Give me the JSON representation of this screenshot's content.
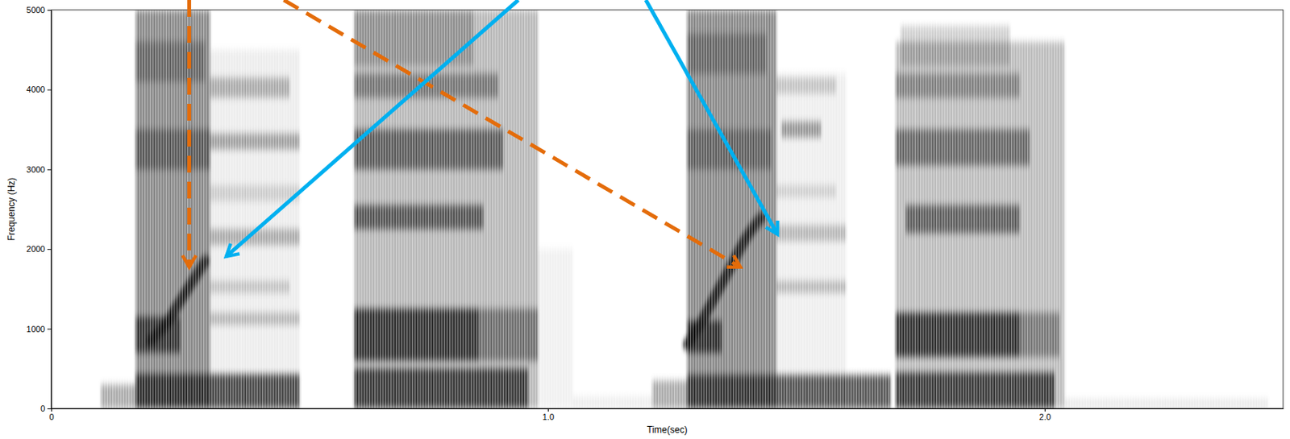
{
  "chart_data": {
    "type": "spectrogram",
    "xlabel": "Time(sec)",
    "ylabel": "Frequency (Hz)",
    "xlim": [
      0,
      2.48
    ],
    "ylim": [
      0,
      5000
    ],
    "xticks": [
      0,
      {
        "value": 1,
        "label": "1.0"
      },
      {
        "value": 2,
        "label": "2.0"
      }
    ],
    "yticks": [
      0,
      1000,
      2000,
      3000,
      4000,
      5000
    ],
    "grid": false,
    "zlim": [
      0,
      1
    ],
    "regions": [
      {
        "t": [
          0.1,
          0.17
        ],
        "f": [
          0,
          300
        ],
        "level": 0.35
      },
      {
        "t": [
          0.17,
          0.5
        ],
        "f": [
          0,
          430
        ],
        "level": 0.75
      },
      {
        "t": [
          0.17,
          0.32
        ],
        "f": [
          0,
          5000
        ],
        "level": 0.5
      },
      {
        "t": [
          0.17,
          0.32
        ],
        "f": [
          3000,
          3500
        ],
        "level": 0.4
      },
      {
        "t": [
          0.17,
          0.31
        ],
        "f": [
          4100,
          4600
        ],
        "level": 0.3
      },
      {
        "t": [
          0.17,
          0.26
        ],
        "f": [
          700,
          1150
        ],
        "level": 0.7
      },
      {
        "t": [
          0.32,
          0.5
        ],
        "f": [
          0,
          4500
        ],
        "level": 0.08
      },
      {
        "t": [
          0.32,
          0.5
        ],
        "f": [
          1050,
          1200
        ],
        "level": 0.25
      },
      {
        "t": [
          0.32,
          0.48
        ],
        "f": [
          1450,
          1600
        ],
        "level": 0.2
      },
      {
        "t": [
          0.32,
          0.5
        ],
        "f": [
          2050,
          2250
        ],
        "level": 0.3
      },
      {
        "t": [
          0.32,
          0.5
        ],
        "f": [
          2600,
          2800
        ],
        "level": 0.15
      },
      {
        "t": [
          0.32,
          0.5
        ],
        "f": [
          3250,
          3450
        ],
        "level": 0.35
      },
      {
        "t": [
          0.32,
          0.48
        ],
        "f": [
          3900,
          4150
        ],
        "level": 0.3
      },
      {
        "t": [
          0.61,
          0.96
        ],
        "f": [
          0,
          500
        ],
        "level": 0.75
      },
      {
        "t": [
          0.61,
          0.86
        ],
        "f": [
          600,
          1250
        ],
        "level": 0.8
      },
      {
        "t": [
          0.86,
          0.98
        ],
        "f": [
          600,
          1250
        ],
        "level": 0.45
      },
      {
        "t": [
          0.61,
          0.98
        ],
        "f": [
          0,
          5000
        ],
        "level": 0.3
      },
      {
        "t": [
          0.61,
          0.87
        ],
        "f": [
          2250,
          2550
        ],
        "level": 0.6
      },
      {
        "t": [
          0.61,
          0.91
        ],
        "f": [
          3000,
          3500
        ],
        "level": 0.55
      },
      {
        "t": [
          0.61,
          0.9
        ],
        "f": [
          3900,
          4200
        ],
        "level": 0.4
      },
      {
        "t": [
          0.61,
          0.85
        ],
        "f": [
          4300,
          5000
        ],
        "level": 0.25
      },
      {
        "t": [
          0.98,
          1.05
        ],
        "f": [
          0,
          2000
        ],
        "level": 0.06
      },
      {
        "t": [
          1.05,
          1.21
        ],
        "f": [
          0,
          150
        ],
        "level": 0.08
      },
      {
        "t": [
          1.21,
          1.28
        ],
        "f": [
          0,
          350
        ],
        "level": 0.35
      },
      {
        "t": [
          1.28,
          1.69
        ],
        "f": [
          0,
          420
        ],
        "level": 0.7
      },
      {
        "t": [
          1.28,
          1.46
        ],
        "f": [
          0,
          5000
        ],
        "level": 0.5
      },
      {
        "t": [
          1.28,
          1.35
        ],
        "f": [
          700,
          1100
        ],
        "level": 0.75
      },
      {
        "t": [
          1.28,
          1.45
        ],
        "f": [
          3000,
          3500
        ],
        "level": 0.35
      },
      {
        "t": [
          1.28,
          1.44
        ],
        "f": [
          4200,
          4700
        ],
        "level": 0.3
      },
      {
        "t": [
          1.46,
          1.6
        ],
        "f": [
          0,
          4200
        ],
        "level": 0.07
      },
      {
        "t": [
          1.46,
          1.6
        ],
        "f": [
          1450,
          1600
        ],
        "level": 0.25
      },
      {
        "t": [
          1.46,
          1.6
        ],
        "f": [
          2100,
          2300
        ],
        "level": 0.25
      },
      {
        "t": [
          1.46,
          1.58
        ],
        "f": [
          2650,
          2800
        ],
        "level": 0.15
      },
      {
        "t": [
          1.47,
          1.55
        ],
        "f": [
          3400,
          3600
        ],
        "level": 0.4
      },
      {
        "t": [
          1.46,
          1.58
        ],
        "f": [
          3950,
          4150
        ],
        "level": 0.2
      },
      {
        "t": [
          1.7,
          2.02
        ],
        "f": [
          0,
          450
        ],
        "level": 0.75
      },
      {
        "t": [
          1.7,
          1.95
        ],
        "f": [
          650,
          1200
        ],
        "level": 0.8
      },
      {
        "t": [
          1.95,
          2.03
        ],
        "f": [
          650,
          1200
        ],
        "level": 0.4
      },
      {
        "t": [
          1.7,
          2.04
        ],
        "f": [
          0,
          4600
        ],
        "level": 0.28
      },
      {
        "t": [
          1.72,
          1.95
        ],
        "f": [
          2200,
          2550
        ],
        "level": 0.55
      },
      {
        "t": [
          1.7,
          1.97
        ],
        "f": [
          3050,
          3500
        ],
        "level": 0.5
      },
      {
        "t": [
          1.7,
          1.95
        ],
        "f": [
          3900,
          4200
        ],
        "level": 0.35
      },
      {
        "t": [
          1.71,
          1.93
        ],
        "f": [
          4300,
          4800
        ],
        "level": 0.2
      },
      {
        "t": [
          2.04,
          2.45
        ],
        "f": [
          0,
          120
        ],
        "level": 0.1
      }
    ],
    "tracks": [
      {
        "t": [
          0.2,
          0.23,
          0.26,
          0.29,
          0.31
        ],
        "f": [
          850,
          1050,
          1350,
          1650,
          1850
        ],
        "level": 0.85
      },
      {
        "t": [
          1.28,
          1.31,
          1.34,
          1.37,
          1.4,
          1.43
        ],
        "f": [
          800,
          1100,
          1450,
          1800,
          2150,
          2400
        ],
        "level": 0.85
      }
    ]
  }
}
